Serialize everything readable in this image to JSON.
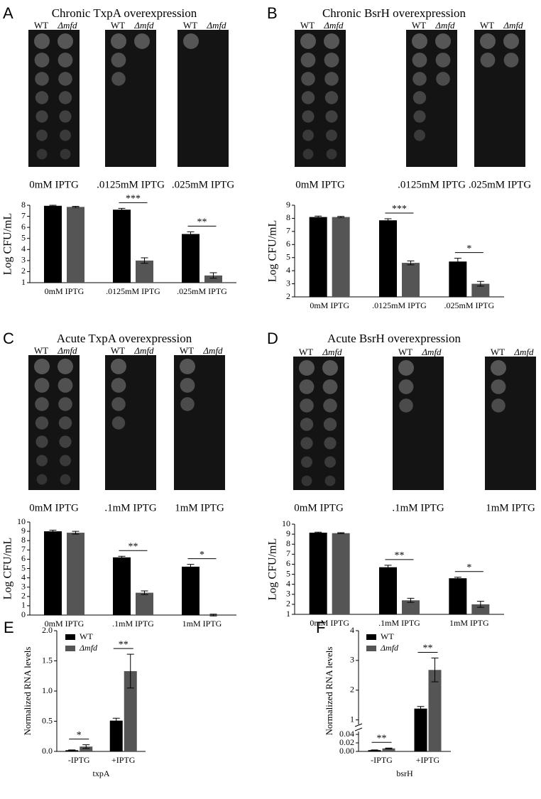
{
  "panels": [
    {
      "letter": "A",
      "title": "Chronic TxpA overexpression",
      "strains": [
        "WT",
        "Δmfd"
      ],
      "plates": [
        "0mM IPTG",
        ".0125mM IPTG",
        ".025mM IPTG"
      ]
    },
    {
      "letter": "B",
      "title": "Chronic BsrH overexpression",
      "strains": [
        "WT",
        "Δmfd"
      ],
      "plates": [
        "0mM IPTG",
        ".0125mM IPTG",
        ".025mM IPTG"
      ]
    },
    {
      "letter": "C",
      "title": "Acute TxpA overexpression",
      "strains": [
        "WT",
        "Δmfd"
      ],
      "plates": [
        "0mM IPTG",
        ".1mM IPTG",
        "1mM IPTG"
      ]
    },
    {
      "letter": "D",
      "title": "Acute BsrH overexpression",
      "strains": [
        "WT",
        "Δmfd"
      ],
      "plates": [
        "0mM IPTG",
        ".1mM IPTG",
        "1mM IPTG"
      ]
    }
  ],
  "chart_data": [
    {
      "type": "bar",
      "ylabel": "Log CFU/mL",
      "categories": [
        "0mM IPTG",
        ".0125mM IPTG",
        ".025mM IPTG"
      ],
      "series": [
        {
          "color": "#000000",
          "values": [
            7.95,
            7.6,
            5.4
          ],
          "errors": [
            0.05,
            0.12,
            0.2
          ]
        },
        {
          "color": "#555555",
          "values": [
            7.85,
            3.0,
            1.65
          ],
          "errors": [
            0.05,
            0.25,
            0.25
          ]
        }
      ],
      "annotations": [
        null,
        "***",
        "**"
      ],
      "ylim": [
        1,
        8
      ],
      "yticks": [
        1,
        2,
        3,
        4,
        5,
        6,
        7,
        8
      ]
    },
    {
      "type": "bar",
      "ylabel": "Log CFU/mL",
      "categories": [
        "0mM IPTG",
        ".0125mM IPTG",
        ".025mM IPTG"
      ],
      "series": [
        {
          "color": "#000000",
          "values": [
            8.1,
            7.85,
            4.7
          ],
          "errors": [
            0.07,
            0.12,
            0.25
          ]
        },
        {
          "color": "#555555",
          "values": [
            8.1,
            4.6,
            3.0
          ],
          "errors": [
            0.05,
            0.15,
            0.18
          ]
        }
      ],
      "annotations": [
        null,
        "***",
        "*"
      ],
      "ylim": [
        2,
        9
      ],
      "yticks": [
        2,
        3,
        4,
        5,
        6,
        7,
        8,
        9
      ]
    },
    {
      "type": "bar",
      "ylabel": "Log CFU/mL",
      "categories": [
        "0mM IPTG",
        ".1mM IPTG",
        "1mM IPTG"
      ],
      "series": [
        {
          "color": "#000000",
          "values": [
            9.0,
            6.2,
            5.2
          ],
          "errors": [
            0.12,
            0.12,
            0.25
          ]
        },
        {
          "color": "#555555",
          "values": [
            8.85,
            2.4,
            0
          ],
          "errors": [
            0.15,
            0.2,
            0.1
          ]
        }
      ],
      "annotations": [
        null,
        "**",
        "*"
      ],
      "ylim": [
        0,
        10
      ],
      "yticks": [
        0,
        1,
        2,
        3,
        4,
        5,
        6,
        7,
        8,
        9,
        10
      ]
    },
    {
      "type": "bar",
      "ylabel": "Log CFU/mL",
      "categories": [
        "0mM IPTG",
        ".1mM IPTG",
        "1mM IPTG"
      ],
      "series": [
        {
          "color": "#000000",
          "values": [
            9.15,
            5.7,
            4.6
          ],
          "errors": [
            0.05,
            0.2,
            0.1
          ]
        },
        {
          "color": "#555555",
          "values": [
            9.1,
            2.4,
            2.0
          ],
          "errors": [
            0.05,
            0.2,
            0.3
          ]
        }
      ],
      "annotations": [
        null,
        "**",
        "*"
      ],
      "ylim": [
        1,
        10
      ],
      "yticks": [
        1,
        2,
        3,
        4,
        5,
        6,
        7,
        8,
        9,
        10
      ]
    },
    {
      "type": "bar",
      "label": "E",
      "ylabel": "Normalized RNA levels",
      "xlabel": "txpA",
      "categories": [
        "-IPTG",
        "+IPTG"
      ],
      "series": [
        {
          "name": "WT",
          "color": "#000000",
          "values": [
            0.02,
            0.51
          ],
          "errors": [
            0.005,
            0.04
          ]
        },
        {
          "name": "Δmfd",
          "color": "#555555",
          "values": [
            0.08,
            1.33
          ],
          "errors": [
            0.03,
            0.28
          ]
        }
      ],
      "annotations": [
        "*",
        "**"
      ],
      "ylim": [
        0,
        2
      ],
      "yticks": [
        {
          "value": 0,
          "label": "0.0"
        },
        0.5,
        {
          "value": 1,
          "label": "1.0"
        },
        1.5,
        {
          "value": 2,
          "label": "2.0"
        }
      ]
    },
    {
      "type": "bar",
      "label": "F",
      "ylabel": "Normalized RNA levels",
      "xlabel": "bsrH",
      "categories": [
        "-IPTG",
        "+IPTG"
      ],
      "series": [
        {
          "name": "WT",
          "color": "#000000",
          "values": [
            0.003,
            1.38
          ],
          "errors": [
            0.0005,
            0.07
          ]
        },
        {
          "name": "Δmfd",
          "color": "#555555",
          "values": [
            0.007,
            2.68
          ],
          "errors": [
            0.001,
            0.4
          ]
        }
      ],
      "annotations": [
        "**",
        "**"
      ],
      "ylim": [
        0,
        4
      ],
      "ybreak": [
        0.05,
        0.8
      ],
      "yticks": [
        {
          "value": 0,
          "label": "0.00"
        },
        {
          "value": 0.02,
          "label": "0.02"
        },
        {
          "value": 0.04,
          "label": "0.04"
        },
        1,
        2,
        3,
        4
      ]
    }
  ]
}
